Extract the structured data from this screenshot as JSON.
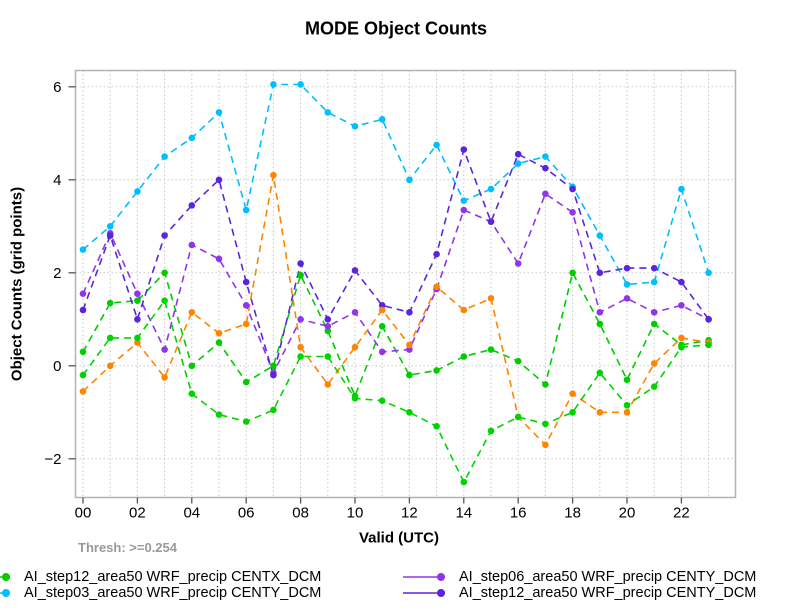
{
  "chart": {
    "title": "MODE Object Counts",
    "xlabel": "Valid (UTC)",
    "ylabel": "Object Counts (grid points)",
    "threshold_note": "Thresh: >=0.254"
  },
  "chart_data": {
    "type": "line",
    "title": "MODE Object Counts",
    "xlabel": "Valid (UTC)",
    "ylabel": "Object Counts (grid points)",
    "grid": true,
    "legend_position": "bottom",
    "x_hours": [
      0,
      1,
      2,
      3,
      4,
      5,
      6,
      7,
      8,
      9,
      10,
      11,
      12,
      13,
      14,
      15,
      16,
      17,
      18,
      19,
      20,
      21,
      22,
      23
    ],
    "x_ticklabels": [
      "00",
      "02",
      "04",
      "06",
      "08",
      "10",
      "12",
      "14",
      "16",
      "18",
      "20",
      "22"
    ],
    "x_tick_hours": [
      0,
      2,
      4,
      6,
      8,
      10,
      12,
      14,
      16,
      18,
      20,
      22
    ],
    "y_ticks": [
      -2,
      0,
      2,
      4,
      6
    ],
    "y_ticklabels": [
      "−2",
      "0",
      "2",
      "4",
      "6"
    ],
    "ylim": [
      -2.9,
      6.4
    ],
    "legend": [
      {
        "label": "AI_step12_area50 WRF_precip CENTX_DCM",
        "color": "#00cc00",
        "series_index": 0
      },
      {
        "label": "AI_step03_area50 WRF_precip CENTY_DCM",
        "color": "#00bfff",
        "series_index": 1
      },
      {
        "label": "AI_step06_area50 WRF_precip CENTY_DCM",
        "color": "#9036e8",
        "series_index": 2
      },
      {
        "label": "AI_step12_area50 WRF_precip CENTY_DCM",
        "color": "#5a25dd",
        "series_index": 3
      }
    ],
    "series": [
      {
        "label": "AI_step12_area50 WRF_precip CENTX_DCM",
        "color": "#00cc00",
        "values": [
          0.3,
          1.35,
          1.4,
          2.0,
          0.0,
          0.5,
          -0.35,
          0.0,
          1.95,
          0.75,
          -0.65,
          0.85,
          -0.2,
          -0.1,
          0.2,
          0.35,
          0.1,
          -0.4,
          2.0,
          0.9,
          -0.3,
          0.9,
          0.45,
          0.55
        ]
      },
      {
        "label": "AI_step03_area50 WRF_precip CENTY_DCM",
        "color": "#00bfff",
        "values": [
          2.5,
          3.0,
          3.75,
          4.5,
          4.9,
          5.45,
          3.35,
          6.05,
          6.05,
          5.45,
          5.15,
          5.3,
          4.0,
          4.75,
          3.55,
          3.8,
          4.35,
          4.5,
          3.85,
          2.8,
          1.75,
          1.8,
          3.8,
          2.0
        ]
      },
      {
        "label": "AI_step06_area50 WRF_precip CENTY_DCM",
        "color": "#9036e8",
        "values": [
          1.55,
          2.85,
          1.55,
          0.35,
          2.6,
          2.3,
          1.3,
          -0.15,
          1.0,
          0.85,
          1.15,
          0.3,
          0.35,
          1.65,
          3.35,
          3.1,
          2.2,
          3.7,
          3.3,
          1.15,
          1.45,
          1.15,
          1.3,
          1.0
        ]
      },
      {
        "label": "AI_step12_area50 WRF_precip CENTY_DCM",
        "color": "#5a25dd",
        "values": [
          1.2,
          2.8,
          1.0,
          2.8,
          3.45,
          4.0,
          1.8,
          -0.2,
          2.2,
          1.0,
          2.05,
          1.3,
          1.15,
          2.4,
          4.65,
          3.1,
          4.55,
          4.25,
          3.8,
          2.0,
          2.1,
          2.1,
          1.8,
          1.0
        ]
      },
      {
        "label": "",
        "color": "#ff8400",
        "values": [
          -0.55,
          0.0,
          0.5,
          -0.25,
          1.15,
          0.7,
          0.9,
          4.1,
          0.4,
          -0.4,
          0.4,
          1.2,
          0.45,
          1.7,
          1.2,
          1.45,
          -1.1,
          -1.7,
          -0.6,
          -1.0,
          -1.0,
          0.05,
          0.6,
          0.5
        ]
      },
      {
        "label": "",
        "color": "#00d400",
        "values": [
          -0.2,
          0.6,
          0.6,
          1.4,
          -0.6,
          -1.05,
          -1.2,
          -0.95,
          0.2,
          0.2,
          -0.7,
          -0.75,
          -1.0,
          -1.3,
          -2.5,
          -1.4,
          -1.1,
          -1.25,
          -1.0,
          -0.15,
          -0.85,
          -0.45,
          0.4,
          0.45
        ]
      }
    ]
  }
}
